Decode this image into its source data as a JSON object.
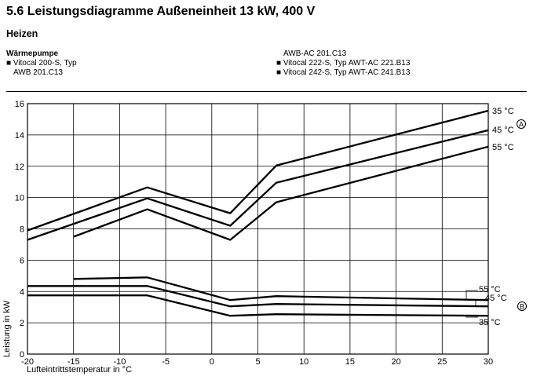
{
  "heading": "5.6 Leistungsdiagramme Außeneinheit 13 kW, 400 V",
  "subheading": "Heizen",
  "device_caption": "Wärmepumpe",
  "devices_left": [
    "■ Vitocal 200-S, Typ",
    "AWB 201.C13"
  ],
  "devices_right": [
    "AWB-AC 201.C13",
    "■ Vitocal 222-S, Typ AWT-AC 221.B13",
    "■ Vitocal 242-S, Typ AWT-AC 241.B13"
  ],
  "marker_a": "A",
  "marker_b": "B",
  "colors": {
    "line": "#000000",
    "grid": "#000000",
    "background": "#ffffff"
  },
  "chart_data": {
    "type": "line",
    "xlabel": "Lufteintrittstemperatur in °C",
    "ylabel": "Leistung in kW",
    "xlim": [
      -20,
      30
    ],
    "ylim": [
      0,
      16
    ],
    "xticks": [
      -20,
      -15,
      -10,
      -5,
      0,
      5,
      10,
      15,
      20,
      25,
      30
    ],
    "yticks": [
      0,
      2,
      4,
      6,
      8,
      10,
      12,
      14,
      16
    ],
    "grid": true,
    "group_a": "A",
    "group_b": "B",
    "series": [
      {
        "name": "35 °C",
        "group": "A",
        "x": [
          -20,
          -7,
          2,
          7,
          30
        ],
        "y": [
          7.9,
          10.65,
          9.0,
          12.05,
          15.55
        ]
      },
      {
        "name": "45 °C",
        "group": "A",
        "x": [
          -20,
          -7,
          2,
          7,
          30
        ],
        "y": [
          7.3,
          9.95,
          8.2,
          10.95,
          14.3
        ]
      },
      {
        "name": "55 °C",
        "group": "A",
        "x": [
          -15,
          -7,
          2,
          7,
          30
        ],
        "y": [
          7.5,
          9.25,
          7.3,
          9.7,
          13.25
        ]
      },
      {
        "name": "55 °C",
        "group": "B",
        "x": [
          -15,
          -7,
          2,
          7,
          30
        ],
        "y": [
          4.8,
          4.9,
          3.45,
          3.7,
          3.45
        ]
      },
      {
        "name": "45 °C",
        "group": "B",
        "x": [
          -20,
          -7,
          2,
          7,
          30
        ],
        "y": [
          4.35,
          4.35,
          3.05,
          3.2,
          3.05
        ]
      },
      {
        "name": "35 °C",
        "group": "B",
        "x": [
          -20,
          -7,
          2,
          7,
          30
        ],
        "y": [
          3.75,
          3.75,
          2.45,
          2.55,
          2.45
        ]
      }
    ]
  }
}
